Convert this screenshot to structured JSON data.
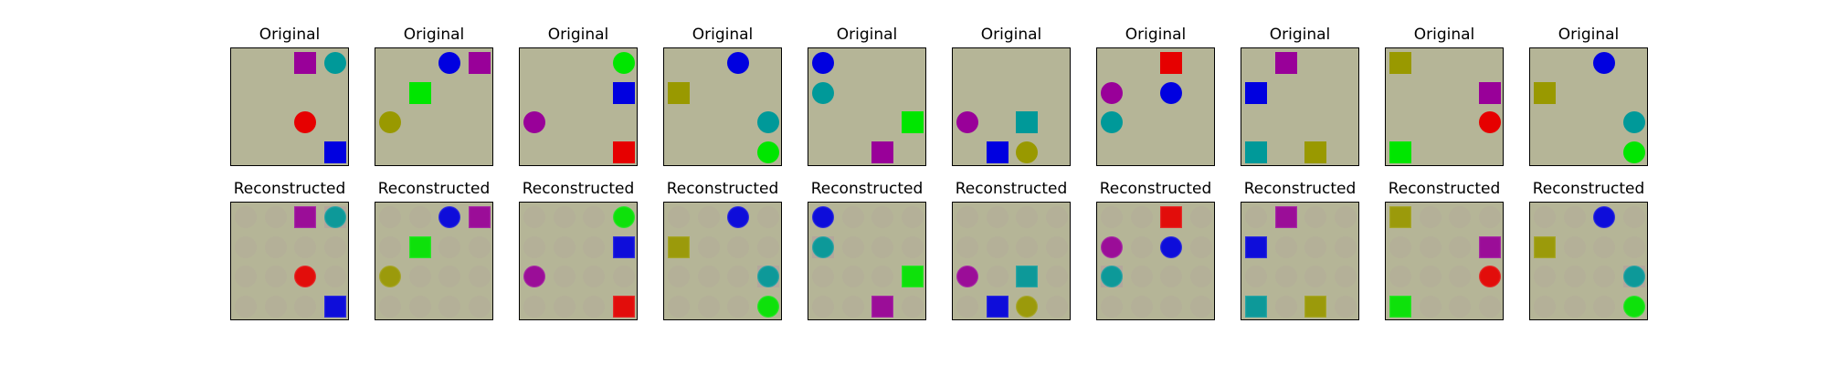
{
  "labels": {
    "original": "Original",
    "reconstructed": "Reconstructed"
  },
  "background_color": "#b5b597",
  "ghost_color": "#b08aa8",
  "palette": {
    "red": "#e60000",
    "green": "#00e600",
    "blue": "#0000e0",
    "purple": "#990099",
    "teal": "#009999",
    "olive": "#999900"
  },
  "examples": [
    {
      "objects": [
        {
          "shape": "square",
          "color": "purple",
          "row": 0,
          "col": 2
        },
        {
          "shape": "circle",
          "color": "teal",
          "row": 0,
          "col": 3
        },
        {
          "shape": "circle",
          "color": "red",
          "row": 2,
          "col": 2
        },
        {
          "shape": "square",
          "color": "blue",
          "row": 3,
          "col": 3
        }
      ]
    },
    {
      "objects": [
        {
          "shape": "circle",
          "color": "blue",
          "row": 0,
          "col": 2
        },
        {
          "shape": "square",
          "color": "purple",
          "row": 0,
          "col": 3
        },
        {
          "shape": "square",
          "color": "green",
          "row": 1,
          "col": 1
        },
        {
          "shape": "circle",
          "color": "olive",
          "row": 2,
          "col": 0
        }
      ]
    },
    {
      "objects": [
        {
          "shape": "circle",
          "color": "green",
          "row": 0,
          "col": 3
        },
        {
          "shape": "square",
          "color": "blue",
          "row": 1,
          "col": 3
        },
        {
          "shape": "circle",
          "color": "purple",
          "row": 2,
          "col": 0
        },
        {
          "shape": "square",
          "color": "red",
          "row": 3,
          "col": 3
        }
      ]
    },
    {
      "objects": [
        {
          "shape": "circle",
          "color": "blue",
          "row": 0,
          "col": 2
        },
        {
          "shape": "square",
          "color": "olive",
          "row": 1,
          "col": 0
        },
        {
          "shape": "circle",
          "color": "teal",
          "row": 2,
          "col": 3
        },
        {
          "shape": "circle",
          "color": "green",
          "row": 3,
          "col": 3
        }
      ]
    },
    {
      "objects": [
        {
          "shape": "circle",
          "color": "blue",
          "row": 0,
          "col": 0
        },
        {
          "shape": "circle",
          "color": "teal",
          "row": 1,
          "col": 0
        },
        {
          "shape": "square",
          "color": "green",
          "row": 2,
          "col": 3
        },
        {
          "shape": "square",
          "color": "purple",
          "row": 3,
          "col": 2
        }
      ]
    },
    {
      "objects": [
        {
          "shape": "circle",
          "color": "purple",
          "row": 2,
          "col": 0
        },
        {
          "shape": "square",
          "color": "teal",
          "row": 2,
          "col": 2
        },
        {
          "shape": "square",
          "color": "blue",
          "row": 3,
          "col": 1
        },
        {
          "shape": "circle",
          "color": "olive",
          "row": 3,
          "col": 2
        }
      ]
    },
    {
      "objects": [
        {
          "shape": "square",
          "color": "red",
          "row": 0,
          "col": 2
        },
        {
          "shape": "circle",
          "color": "purple",
          "row": 1,
          "col": 0
        },
        {
          "shape": "circle",
          "color": "blue",
          "row": 1,
          "col": 2
        },
        {
          "shape": "circle",
          "color": "teal",
          "row": 2,
          "col": 0
        }
      ]
    },
    {
      "objects": [
        {
          "shape": "square",
          "color": "purple",
          "row": 0,
          "col": 1
        },
        {
          "shape": "square",
          "color": "blue",
          "row": 1,
          "col": 0
        },
        {
          "shape": "square",
          "color": "teal",
          "row": 3,
          "col": 0
        },
        {
          "shape": "square",
          "color": "olive",
          "row": 3,
          "col": 2
        }
      ]
    },
    {
      "objects": [
        {
          "shape": "square",
          "color": "olive",
          "row": 0,
          "col": 0
        },
        {
          "shape": "square",
          "color": "purple",
          "row": 1,
          "col": 3
        },
        {
          "shape": "circle",
          "color": "red",
          "row": 2,
          "col": 3
        },
        {
          "shape": "square",
          "color": "green",
          "row": 3,
          "col": 0
        }
      ]
    },
    {
      "objects": [
        {
          "shape": "circle",
          "color": "blue",
          "row": 0,
          "col": 2
        },
        {
          "shape": "square",
          "color": "olive",
          "row": 1,
          "col": 0
        },
        {
          "shape": "circle",
          "color": "teal",
          "row": 2,
          "col": 3
        },
        {
          "shape": "circle",
          "color": "green",
          "row": 3,
          "col": 3
        }
      ]
    }
  ],
  "reconstruction_faint": [
    [
      {
        "row": 0,
        "col": 3
      }
    ],
    [],
    [],
    [
      {
        "row": 2,
        "col": 3
      }
    ],
    [
      {
        "row": 1,
        "col": 0
      }
    ],
    [
      {
        "row": 2,
        "col": 2
      }
    ],
    [
      {
        "row": 2,
        "col": 0
      }
    ],
    [
      {
        "row": 3,
        "col": 0
      }
    ],
    [],
    [
      {
        "row": 2,
        "col": 3
      }
    ]
  ]
}
